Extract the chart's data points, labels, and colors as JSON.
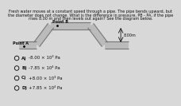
{
  "title_line1": "Fresh water moves at a constant speed through a pipe. The pipe bends upward, but",
  "title_line2": "the diameter does not change. What is the difference in pressure, PB - PA, if the pipe",
  "title_line3": "rises 8.00 m and then levels out again? See the diagram below.",
  "point_a_label": "Point A",
  "point_b_label": "Point B",
  "height_label": "8.00m",
  "options": [
    {
      "letter": "A",
      "text": "-8.00 × 10³ Pa"
    },
    {
      "letter": "B",
      "text": "-7.85 × 10⁴ Pa"
    },
    {
      "letter": "C",
      "text": "+8.00 × 10³ Pa"
    },
    {
      "letter": "D",
      "text": "+7.85 × 10⁴ Pa"
    }
  ],
  "bg_color": "#d8d8d8",
  "text_color": "#111111",
  "pipe_color": "#777777",
  "pipe_fill": "#bbbbbb"
}
